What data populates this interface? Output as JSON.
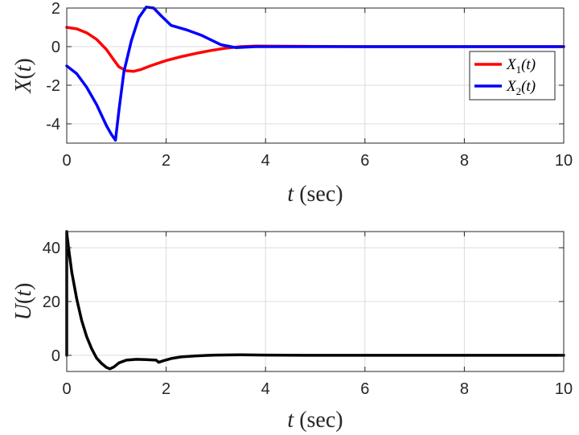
{
  "chart_data": [
    {
      "type": "line",
      "ylabel_var": "X",
      "ylabel_arg": "t",
      "xlabel_var": "t",
      "xlabel_unit": "(sec)",
      "xlim": [
        0,
        10
      ],
      "ylim": [
        -5,
        2
      ],
      "xticks": [
        0,
        2,
        4,
        6,
        8,
        10
      ],
      "yticks": [
        -4,
        -2,
        0,
        2
      ],
      "grid": true,
      "legend_position": "right",
      "series": [
        {
          "name": "X1(t)",
          "legend_main": "X",
          "legend_sub": "1",
          "legend_arg": "(t)",
          "color": "#ff0000",
          "x": [
            0,
            0.2,
            0.4,
            0.6,
            0.8,
            0.95,
            1.05,
            1.2,
            1.35,
            1.5,
            1.7,
            2.0,
            2.3,
            2.6,
            2.9,
            3.2,
            3.5,
            3.8,
            4.5,
            6,
            8,
            10
          ],
          "y": [
            1.0,
            0.92,
            0.72,
            0.38,
            -0.15,
            -0.7,
            -1.05,
            -1.25,
            -1.28,
            -1.18,
            -0.98,
            -0.72,
            -0.52,
            -0.35,
            -0.2,
            -0.08,
            0.0,
            0.03,
            0.02,
            0.0,
            0.0,
            0.0
          ]
        },
        {
          "name": "X2(t)",
          "legend_main": "X",
          "legend_sub": "2",
          "legend_arg": "(t)",
          "color": "#0000ff",
          "x": [
            0,
            0.2,
            0.4,
            0.6,
            0.8,
            0.9,
            0.98,
            1.05,
            1.15,
            1.3,
            1.45,
            1.6,
            1.75,
            1.9,
            2.1,
            2.4,
            2.7,
            2.9,
            3.1,
            3.4,
            3.8,
            4.5,
            6,
            8,
            10
          ],
          "y": [
            -1.0,
            -1.4,
            -2.1,
            -3.0,
            -4.1,
            -4.55,
            -4.85,
            -3.3,
            -1.3,
            0.3,
            1.5,
            2.05,
            2.0,
            1.6,
            1.1,
            0.88,
            0.6,
            0.35,
            0.1,
            -0.05,
            0.0,
            0.0,
            0.0,
            0.0,
            0.0
          ]
        }
      ]
    },
    {
      "type": "line",
      "ylabel_var": "U",
      "ylabel_arg": "t",
      "xlabel_var": "t",
      "xlabel_unit": "(sec)",
      "xlim": [
        0,
        10
      ],
      "ylim": [
        -6,
        46
      ],
      "xticks": [
        0,
        2,
        4,
        6,
        8,
        10
      ],
      "yticks": [
        0,
        20,
        40
      ],
      "grid": true,
      "series": [
        {
          "color": "#000000",
          "x": [
            0,
            0,
            0.01,
            0.05,
            0.1,
            0.2,
            0.3,
            0.4,
            0.5,
            0.6,
            0.7,
            0.8,
            0.87,
            0.95,
            1.05,
            1.2,
            1.4,
            1.6,
            1.8,
            1.85,
            1.95,
            2.1,
            2.3,
            2.6,
            3.0,
            3.5,
            4.0,
            5,
            6,
            8,
            10
          ],
          "y": [
            0,
            46,
            44,
            38,
            31,
            21,
            13,
            7,
            2.5,
            -1,
            -3,
            -4.5,
            -5,
            -4.3,
            -2.8,
            -1.8,
            -1.5,
            -1.6,
            -1.8,
            -2.6,
            -2.0,
            -1.2,
            -0.6,
            -0.2,
            0.1,
            0.2,
            0.1,
            0,
            0,
            0,
            0
          ]
        }
      ]
    }
  ]
}
